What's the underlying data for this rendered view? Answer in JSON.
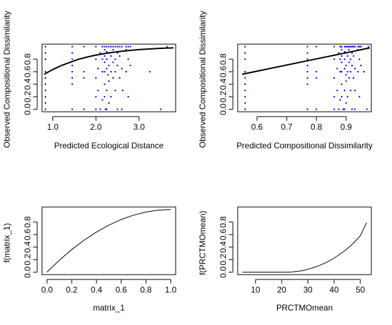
{
  "chart_data": [
    {
      "type": "scatter",
      "xlabel": "Predicted Ecological Distance",
      "ylabel": "Observed Compositional Dissimilarity",
      "xlim": [
        0.75,
        3.85
      ],
      "ylim": [
        -0.04,
        1.04
      ],
      "xticks": [
        1.0,
        2.0,
        3.0
      ],
      "xtick_labels": [
        "1.0",
        "2.0",
        "3.0"
      ],
      "yticks": [
        0.0,
        0.2,
        0.4,
        0.6,
        0.8
      ],
      "ytick_labels": [
        "0.0",
        "0.2",
        "0.4",
        "0.6",
        "0.8"
      ],
      "point_color": "#0000cc",
      "line_color": "#000000",
      "series": [
        {
          "kind": "points",
          "x": [
            0.83,
            0.83,
            0.83,
            0.83,
            0.83,
            0.83,
            0.83,
            0.83,
            0.83,
            0.83,
            1.45,
            1.45,
            1.45,
            1.45,
            1.45,
            1.45,
            1.45,
            1.45,
            1.72,
            1.72,
            1.72,
            1.72,
            2.0,
            2.0,
            2.0,
            2.0,
            2.0,
            2.05,
            2.05,
            2.1,
            2.1,
            2.15,
            2.15,
            2.15,
            2.15,
            2.2,
            2.2,
            2.2,
            2.2,
            2.2,
            2.2,
            2.2,
            2.22,
            2.25,
            2.25,
            2.25,
            2.25,
            2.25,
            2.25,
            2.28,
            2.3,
            2.3,
            2.3,
            2.3,
            2.3,
            2.35,
            2.35,
            2.35,
            2.35,
            2.4,
            2.4,
            2.4,
            2.4,
            2.45,
            2.45,
            2.45,
            2.45,
            2.5,
            2.5,
            2.5,
            2.5,
            2.55,
            2.55,
            2.55,
            2.6,
            2.6,
            2.6,
            2.62,
            2.7,
            2.7,
            2.7,
            2.75,
            2.75,
            2.75,
            2.8,
            2.8,
            3.25,
            3.5,
            3.65
          ],
          "y": [
            1.0,
            0.9,
            0.8,
            0.6,
            0.5,
            0.4,
            0.3,
            0.2,
            0.1,
            0.0,
            1.0,
            0.9,
            0.8,
            0.7,
            0.6,
            0.5,
            0.4,
            0.0,
            1.0,
            0.6,
            0.5,
            0.0,
            1.0,
            0.8,
            0.5,
            0.2,
            0.0,
            0.65,
            0.3,
            0.9,
            0.0,
            1.0,
            0.8,
            0.6,
            0.15,
            1.0,
            0.95,
            0.85,
            0.75,
            0.6,
            0.4,
            0.2,
            0.0,
            1.0,
            0.92,
            0.8,
            0.65,
            0.3,
            0.0,
            0.55,
            1.0,
            0.9,
            0.7,
            0.45,
            0.1,
            1.0,
            0.85,
            0.6,
            0.2,
            1.0,
            0.95,
            0.75,
            0.5,
            1.0,
            0.8,
            0.6,
            0.3,
            1.0,
            0.9,
            0.7,
            0.0,
            1.0,
            0.85,
            0.5,
            1.0,
            0.65,
            0.0,
            0.3,
            1.0,
            0.95,
            0.6,
            1.0,
            0.8,
            0.2,
            1.0,
            0.7,
            0.6,
            0.0,
            1.0
          ]
        },
        {
          "kind": "line",
          "x": [
            0.8,
            1.0,
            1.2,
            1.4,
            1.6,
            1.8,
            2.0,
            2.2,
            2.4,
            2.6,
            2.8,
            3.0,
            3.2,
            3.4,
            3.6,
            3.8
          ],
          "y": [
            0.56,
            0.635,
            0.7,
            0.75,
            0.8,
            0.835,
            0.865,
            0.89,
            0.91,
            0.927,
            0.941,
            0.953,
            0.962,
            0.97,
            0.976,
            0.98
          ]
        }
      ]
    },
    {
      "type": "scatter",
      "xlabel": "Predicted Compositional Dissimilarity",
      "ylabel": "Observed Compositional Dissimilarity",
      "xlim": [
        0.535,
        0.985
      ],
      "ylim": [
        -0.04,
        1.04
      ],
      "xticks": [
        0.6,
        0.7,
        0.8,
        0.9
      ],
      "xtick_labels": [
        "0.6",
        "0.7",
        "0.8",
        "0.9"
      ],
      "yticks": [
        0.0,
        0.2,
        0.4,
        0.6,
        0.8
      ],
      "ytick_labels": [
        "0.0",
        "0.2",
        "0.4",
        "0.6",
        "0.8"
      ],
      "point_color": "#0000cc",
      "line_color": "#000000",
      "series": [
        {
          "kind": "points",
          "x": [
            0.56,
            0.56,
            0.56,
            0.56,
            0.56,
            0.56,
            0.56,
            0.56,
            0.56,
            0.56,
            0.77,
            0.77,
            0.77,
            0.77,
            0.77,
            0.77,
            0.77,
            0.77,
            0.8,
            0.8,
            0.8,
            0.8,
            0.86,
            0.86,
            0.86,
            0.86,
            0.86,
            0.87,
            0.87,
            0.875,
            0.875,
            0.88,
            0.88,
            0.88,
            0.88,
            0.885,
            0.885,
            0.885,
            0.885,
            0.885,
            0.885,
            0.885,
            0.89,
            0.895,
            0.895,
            0.895,
            0.895,
            0.895,
            0.895,
            0.9,
            0.9,
            0.9,
            0.9,
            0.9,
            0.9,
            0.905,
            0.905,
            0.905,
            0.905,
            0.91,
            0.91,
            0.91,
            0.91,
            0.915,
            0.915,
            0.915,
            0.915,
            0.92,
            0.92,
            0.92,
            0.92,
            0.925,
            0.925,
            0.925,
            0.93,
            0.93,
            0.93,
            0.93,
            0.94,
            0.94,
            0.94,
            0.945,
            0.945,
            0.945,
            0.95,
            0.95,
            0.96,
            0.97,
            0.975
          ],
          "y": [
            1.0,
            0.9,
            0.8,
            0.6,
            0.5,
            0.4,
            0.3,
            0.2,
            0.1,
            0.0,
            1.0,
            0.9,
            0.8,
            0.7,
            0.6,
            0.5,
            0.4,
            0.0,
            1.0,
            0.6,
            0.5,
            0.0,
            1.0,
            0.8,
            0.5,
            0.2,
            0.0,
            0.65,
            0.3,
            0.9,
            0.0,
            1.0,
            0.8,
            0.6,
            0.15,
            1.0,
            0.95,
            0.85,
            0.75,
            0.6,
            0.4,
            0.2,
            0.0,
            1.0,
            0.92,
            0.8,
            0.65,
            0.3,
            0.0,
            0.55,
            1.0,
            0.9,
            0.7,
            0.45,
            0.1,
            1.0,
            0.85,
            0.6,
            0.2,
            1.0,
            0.95,
            0.75,
            0.5,
            1.0,
            0.8,
            0.6,
            0.3,
            1.0,
            0.9,
            0.7,
            0.0,
            1.0,
            0.85,
            0.5,
            1.0,
            0.65,
            0.0,
            0.3,
            1.0,
            0.95,
            0.6,
            1.0,
            0.8,
            0.2,
            1.0,
            0.7,
            0.6,
            0.0,
            1.0
          ]
        },
        {
          "kind": "line",
          "x": [
            0.55,
            0.98
          ],
          "y": [
            0.56,
            0.98
          ]
        }
      ]
    },
    {
      "type": "line",
      "xlabel": "matrix_1",
      "ylabel": "f(matrix_1)",
      "xlim": [
        -0.04,
        1.04
      ],
      "ylim": [
        -0.04,
        1.04
      ],
      "xticks": [
        0.0,
        0.2,
        0.4,
        0.6,
        0.8,
        1.0
      ],
      "xtick_labels": [
        "0.0",
        "0.2",
        "0.4",
        "0.6",
        "0.8",
        "1.0"
      ],
      "yticks": [
        0.0,
        0.2,
        0.4,
        0.6,
        0.8
      ],
      "ytick_labels": [
        "0.0",
        "0.2",
        "0.4",
        "0.6",
        "0.8"
      ],
      "line_color": "#000000",
      "series": [
        {
          "kind": "line",
          "x": [
            0.0,
            0.1,
            0.2,
            0.3,
            0.4,
            0.5,
            0.6,
            0.7,
            0.8,
            0.9,
            1.0
          ],
          "y": [
            0.0,
            0.19,
            0.36,
            0.51,
            0.64,
            0.75,
            0.84,
            0.91,
            0.96,
            0.99,
            1.0
          ]
        }
      ]
    },
    {
      "type": "line",
      "xlabel": "PRCTMOmean",
      "ylabel": "f(PRCTMOmean)",
      "xlim": [
        3.2,
        54.2
      ],
      "ylim": [
        -0.04,
        1.04
      ],
      "xticks": [
        10,
        20,
        30,
        40,
        50
      ],
      "xtick_labels": [
        "10",
        "20",
        "30",
        "40",
        "50"
      ],
      "yticks": [
        0.0,
        0.2,
        0.4,
        0.6,
        0.8
      ],
      "ytick_labels": [
        "0.0",
        "0.2",
        "0.4",
        "0.6",
        "0.8"
      ],
      "line_color": "#000000",
      "series": [
        {
          "kind": "line",
          "x": [
            5,
            10,
            15,
            20,
            22,
            24,
            26,
            28,
            30,
            32,
            34,
            36,
            38,
            40,
            42,
            44,
            46,
            48,
            50,
            52.4
          ],
          "y": [
            0.0,
            0.0,
            0.0,
            0.0,
            0.0,
            0.003,
            0.011,
            0.025,
            0.045,
            0.07,
            0.1,
            0.135,
            0.177,
            0.225,
            0.28,
            0.34,
            0.41,
            0.49,
            0.58,
            0.79
          ]
        }
      ]
    }
  ]
}
